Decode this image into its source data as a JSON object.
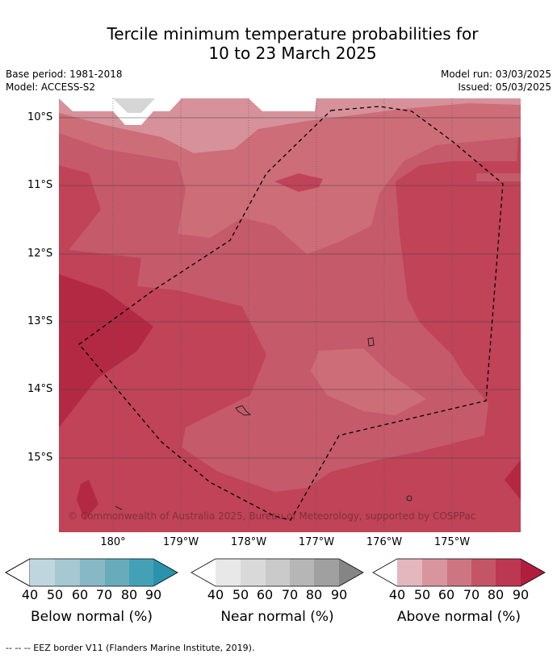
{
  "title_line1": "Tercile minimum temperature probabilities for",
  "title_line2": "10 to 23 March 2025",
  "meta_left": [
    "Base period: 1981-2018",
    "Model: ACCESS-S2"
  ],
  "meta_right": [
    "Model run: 03/03/2025",
    "Issued: 05/03/2025"
  ],
  "lat_labels": [
    "10°S",
    "11°S",
    "12°S",
    "13°S",
    "14°S",
    "15°S"
  ],
  "lon_labels": [
    "180°",
    "179°W",
    "178°W",
    "177°W",
    "176°W",
    "175°W"
  ],
  "copyright": "© Commonwealth of Australia 2025, Bureau of Meteorology, supported by COSPPac",
  "colorbars": [
    {
      "label": "Below normal (%)",
      "ticks": [
        "40",
        "50",
        "60",
        "70",
        "80",
        "90"
      ],
      "colors": [
        "#bfd6df",
        "#a6c8d1",
        "#87b8c6",
        "#68acbc",
        "#44a1b5",
        "#2a92ad"
      ]
    },
    {
      "label": "Near normal (%)",
      "ticks": [
        "40",
        "50",
        "60",
        "70",
        "80",
        "90"
      ],
      "colors": [
        "#e8e8e8",
        "#d9d9d9",
        "#cacaca",
        "#b6b6b6",
        "#a0a0a0",
        "#858585"
      ]
    },
    {
      "label": "Above normal (%)",
      "ticks": [
        "40",
        "50",
        "60",
        "70",
        "80",
        "90"
      ],
      "colors": [
        "#e4b7bf",
        "#d9959e",
        "#cd7580",
        "#c45566",
        "#bc3751",
        "#b01e3e"
      ]
    }
  ],
  "footer": "--  --  -- EEZ border V11 (Flanders Marine Institute, 2019)."
}
